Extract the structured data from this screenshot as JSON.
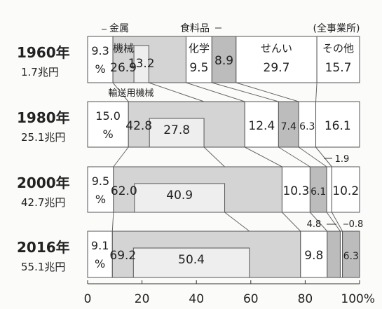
{
  "chart_data": {
    "type": "bar",
    "scope_note": "(全事業所)",
    "x_ticks": [
      "0",
      "20",
      "40",
      "60",
      "80",
      "100%"
    ],
    "xlim": [
      0,
      100
    ],
    "colors": {
      "machinery": "#d4d4d4",
      "transport": "#eeeeee",
      "light": "#ffffff",
      "food": "#bcbcbc",
      "edge": "#555555"
    },
    "callouts": {
      "metal": "金属",
      "food": "食料品",
      "transport": "輸送用機械",
      "v2000_food": "1.9",
      "v2016_chem": "4.8",
      "v2016_food": "0.8"
    },
    "rows": [
      {
        "year": "1960年",
        "total": "1.7兆円",
        "segments": [
          {
            "category": "金属",
            "value": 9.3,
            "label": "9.3",
            "unit": "%",
            "fill": "light"
          },
          {
            "category": "機械",
            "value": 26.9,
            "label": "26.9",
            "name_label": "機械",
            "fill": "machinery"
          },
          {
            "category": "化学",
            "value": 9.5,
            "label": "9.5",
            "name_label": "化学",
            "fill": "light"
          },
          {
            "category": "食料品",
            "value": 8.9,
            "label": "8.9",
            "fill": "food"
          },
          {
            "category": "せんい",
            "value": 29.7,
            "label": "29.7",
            "name_label": "せんい",
            "fill": "light"
          },
          {
            "category": "その他",
            "value": 15.7,
            "label": "15.7",
            "name_label": "その他",
            "fill": "light"
          }
        ],
        "sub_segment": {
          "category": "輸送用機械",
          "value": 13.2,
          "label": "13.2",
          "parent_index": 1,
          "fill": "transport"
        }
      },
      {
        "year": "1980年",
        "total": "25.1兆円",
        "segments": [
          {
            "category": "金属",
            "value": 15.0,
            "label": "15.0",
            "unit": "%",
            "fill": "light"
          },
          {
            "category": "機械",
            "value": 42.8,
            "label": "42.8",
            "fill": "machinery"
          },
          {
            "category": "化学",
            "value": 12.4,
            "label": "12.4",
            "fill": "light"
          },
          {
            "category": "食料品",
            "value": 7.4,
            "label": "7.4",
            "fill": "food"
          },
          {
            "category": "せんい",
            "value": 6.3,
            "label": "6.3",
            "fill": "light"
          },
          {
            "category": "その他",
            "value": 16.1,
            "label": "16.1",
            "fill": "light"
          }
        ],
        "sub_segment": {
          "category": "輸送用機械",
          "value": 27.8,
          "label": "27.8",
          "parent_index": 1,
          "fill": "transport"
        }
      },
      {
        "year": "2000年",
        "total": "42.7兆円",
        "segments": [
          {
            "category": "金属",
            "value": 9.5,
            "label": "9.5",
            "unit": "%",
            "fill": "light"
          },
          {
            "category": "機械",
            "value": 62.0,
            "label": "62.0",
            "fill": "machinery"
          },
          {
            "category": "化学",
            "value": 10.3,
            "label": "10.3",
            "fill": "light"
          },
          {
            "category": "食料品",
            "value": 6.1,
            "label": "6.1",
            "fill": "food"
          },
          {
            "category": "せんい",
            "value": 1.9,
            "label": "",
            "fill": "light"
          },
          {
            "category": "その他",
            "value": 10.2,
            "label": "10.2",
            "fill": "light"
          }
        ],
        "sub_segment": {
          "category": "輸送用機械",
          "value": 40.9,
          "label": "40.9",
          "parent_index": 1,
          "fill": "transport"
        }
      },
      {
        "year": "2016年",
        "total": "55.1兆円",
        "segments": [
          {
            "category": "金属",
            "value": 9.1,
            "label": "9.1",
            "unit": "%",
            "fill": "light"
          },
          {
            "category": "機械",
            "value": 69.2,
            "label": "69.2",
            "fill": "machinery"
          },
          {
            "category": "化学",
            "value": 9.8,
            "label": "9.8",
            "fill": "light"
          },
          {
            "category": "食料品",
            "value": 4.8,
            "label": "",
            "fill": "food"
          },
          {
            "category": "せんい",
            "value": 0.8,
            "label": "",
            "fill": "light"
          },
          {
            "category": "その他",
            "value": 6.3,
            "label": "6.3",
            "fill": "food"
          }
        ],
        "sub_segment": {
          "category": "輸送用機械",
          "value": 50.4,
          "label": "50.4",
          "parent_index": 1,
          "fill": "transport"
        }
      }
    ]
  }
}
